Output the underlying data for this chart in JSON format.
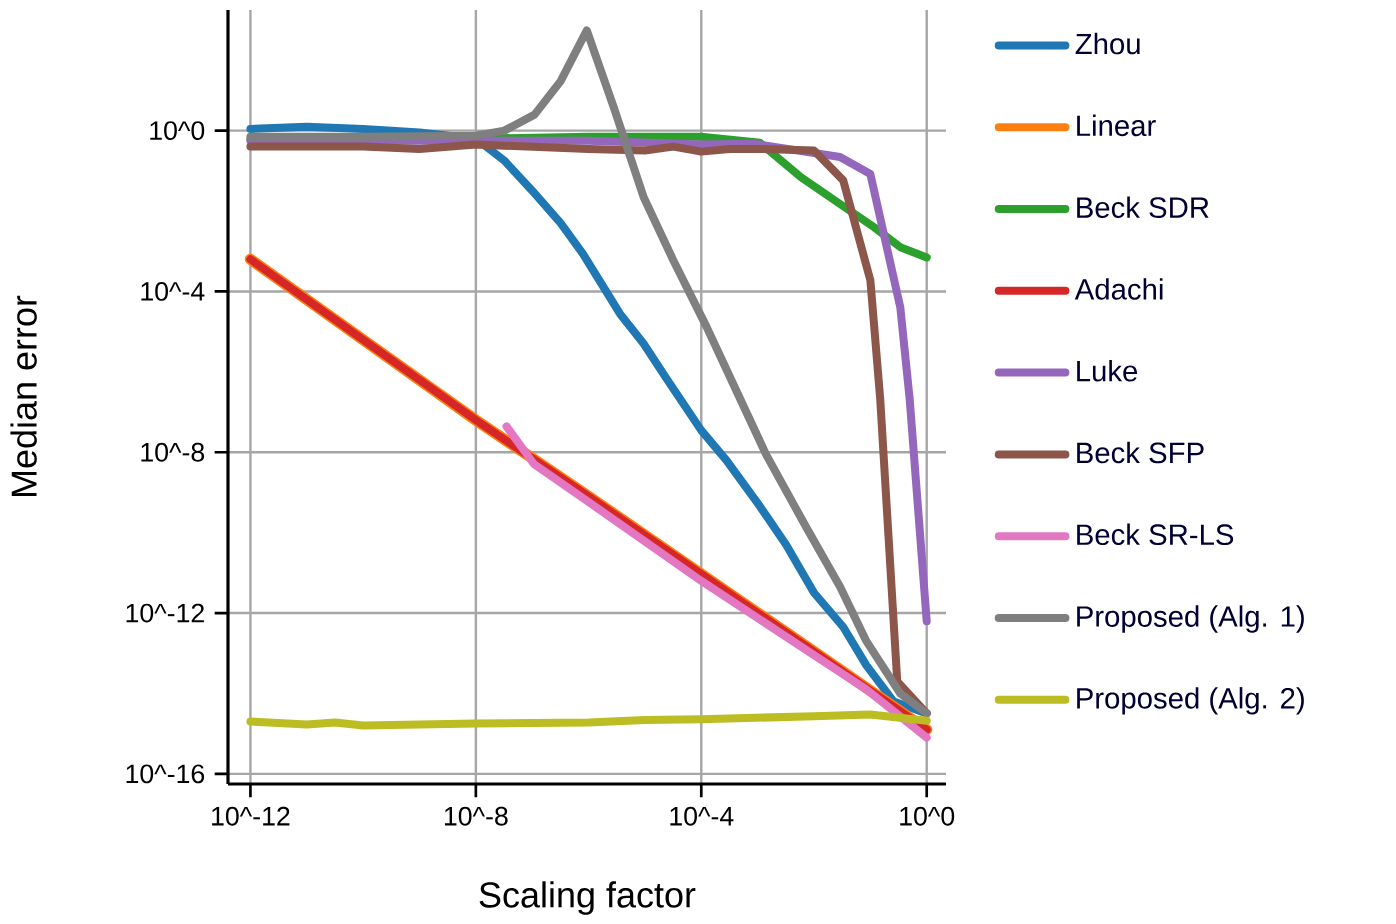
{
  "chart_data": {
    "type": "line",
    "xlabel": "Scaling factor",
    "ylabel": "Median error",
    "log": "xy",
    "grid": true,
    "legend": "right",
    "marker": "none",
    "line_style": "solid",
    "xlim": [
      4e-13,
      2.2
    ],
    "ylim": [
      5.6e-17,
      1000
    ],
    "xticks": [
      {
        "value": 1e-12,
        "label": "10^-12"
      },
      {
        "value": 1e-08,
        "label": "10^-8"
      },
      {
        "value": 0.0001,
        "label": "10^-4"
      },
      {
        "value": 1,
        "label": "10^0"
      }
    ],
    "yticks": [
      {
        "value": 1e-16,
        "label": "10^-16"
      },
      {
        "value": 1e-12,
        "label": "10^-12"
      },
      {
        "value": 1e-08,
        "label": "10^-8"
      },
      {
        "value": 0.0001,
        "label": "10^-4"
      },
      {
        "value": 1,
        "label": "10^0"
      }
    ],
    "series": [
      {
        "name": "Zhou",
        "color": "#1f77b4",
        "x": [
          1e-12,
          1e-11,
          1e-10,
          1e-09,
          1e-08,
          3.2e-08,
          1e-07,
          3.2e-07,
          8e-07,
          3.6e-06,
          9.5e-06,
          2.5e-05,
          0.0001,
          0.00028,
          0.0011,
          0.0032,
          0.01,
          0.033,
          0.085,
          0.26,
          1
        ],
        "values": [
          1.1,
          1.25,
          1.1,
          0.9,
          0.63,
          0.18,
          0.032,
          0.005,
          0.00085,
          2.8e-05,
          5e-06,
          6.3e-07,
          3.5e-08,
          6.3e-09,
          4.5e-10,
          5e-11,
          3.2e-12,
          4.5e-13,
          5e-14,
          6.3e-15,
          3.2e-15
        ]
      },
      {
        "name": "Linear",
        "color": "#ff7f0e",
        "x": [
          1e-12,
          1e-10,
          1e-08,
          1e-06,
          0.0001,
          0.01,
          1
        ],
        "values": [
          0.00063,
          6.3e-06,
          6.3e-08,
          8e-10,
          9.3e-12,
          1.1e-13,
          1.26e-15
        ]
      },
      {
        "name": "Beck SDR",
        "color": "#2ca02c",
        "x": [
          1e-12,
          1e-08,
          1e-06,
          0.0001,
          0.0011,
          0.0058,
          0.029,
          0.115,
          0.34,
          1
        ],
        "values": [
          0.6,
          0.63,
          0.7,
          0.7,
          0.5,
          0.07,
          0.015,
          0.004,
          0.00126,
          0.0007
        ]
      },
      {
        "name": "Adachi",
        "color": "#d62728",
        "x": [
          1e-12,
          1e-10,
          1e-08,
          1e-06,
          0.0001,
          0.01,
          1
        ],
        "values": [
          0.00063,
          6.3e-06,
          6.3e-08,
          8e-10,
          9.3e-12,
          1.1e-13,
          1.26e-15
        ]
      },
      {
        "name": "Luke",
        "color": "#9467bd",
        "x": [
          1e-12,
          1e-08,
          1e-06,
          0.0001,
          0.00085,
          0.029,
          0.1,
          0.34,
          0.5,
          1
        ],
        "values": [
          0.56,
          0.56,
          0.56,
          0.45,
          0.47,
          0.22,
          0.083,
          4e-05,
          2e-07,
          6.3e-13
        ]
      },
      {
        "name": "Beck SFP",
        "color": "#8c564b",
        "x": [
          1e-12,
          1e-10,
          1e-09,
          1e-08,
          1e-06,
          1e-05,
          3.2e-05,
          0.0001,
          0.00032,
          0.001,
          0.01,
          0.033,
          0.1,
          0.15,
          0.3,
          1
        ],
        "values": [
          0.4,
          0.4,
          0.35,
          0.45,
          0.35,
          0.32,
          0.4,
          0.3,
          0.35,
          0.35,
          0.32,
          0.058,
          0.00019,
          2e-07,
          2e-14,
          3.2e-15
        ]
      },
      {
        "name": "Beck SR-LS",
        "color": "#e377c2",
        "x": [
          3.5e-08,
          1.07e-07,
          1e-06,
          0.0001,
          0.01,
          0.085,
          1
        ],
        "values": [
          4.4e-08,
          5.1e-09,
          5.8e-10,
          6.3e-12,
          9e-14,
          1.26e-14,
          8e-16
        ]
      },
      {
        "name": "Proposed (Alg. 1)",
        "color": "#7f7f7f",
        "x": [
          1e-12,
          1e-10,
          1e-08,
          3.2e-08,
          1.1e-07,
          3.2e-07,
          9.3e-07,
          2.8e-06,
          9.5e-06,
          3.2e-05,
          0.000126,
          0.0005,
          0.0014,
          0.0072,
          0.029,
          0.085,
          0.34,
          1
        ],
        "values": [
          0.7,
          0.7,
          0.75,
          1.0,
          2.5,
          17,
          310,
          3.8,
          0.022,
          0.00059,
          1.26e-05,
          2e-07,
          9e-09,
          1.4e-10,
          4.5e-12,
          2e-13,
          1e-14,
          3.2e-15
        ]
      },
      {
        "name": "Proposed (Alg. 2)",
        "color": "#bcbd22",
        "x": [
          1e-12,
          1e-11,
          3.2e-11,
          1e-10,
          1e-08,
          1e-06,
          1e-05,
          0.0001,
          0.01,
          0.1,
          1
        ],
        "values": [
          2e-15,
          1.7e-15,
          1.9e-15,
          1.6e-15,
          1.8e-15,
          1.9e-15,
          2.2e-15,
          2.3e-15,
          2.7e-15,
          3e-15,
          2.1e-15
        ]
      }
    ]
  }
}
